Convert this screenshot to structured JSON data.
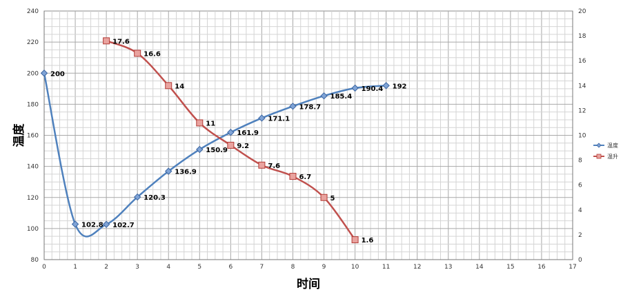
{
  "chart_data": {
    "type": "line",
    "xlabel": "时间",
    "ylabel": "温度",
    "xlim": [
      0,
      17
    ],
    "x_ticks": [
      "0",
      "1",
      "2",
      "3",
      "4",
      "5",
      "6",
      "7",
      "8",
      "9",
      "10",
      "11",
      "12",
      "13",
      "14",
      "15",
      "16",
      "17"
    ],
    "ylim_left": [
      80,
      240
    ],
    "left_ticks": [
      "80",
      "100",
      "120",
      "140",
      "160",
      "180",
      "200",
      "220",
      "240"
    ],
    "ylim_right": [
      0,
      20
    ],
    "right_ticks": [
      "0",
      "2",
      "4",
      "6",
      "8",
      "10",
      "12",
      "14",
      "16",
      "18",
      "20"
    ],
    "grid": true,
    "legend_position": "right",
    "series": [
      {
        "name": "温度",
        "axis": "left",
        "marker": "diamond",
        "color": "#4F81BD",
        "x": [
          0,
          1,
          2,
          3,
          4,
          5,
          6,
          7,
          8,
          9,
          10,
          11
        ],
        "y": [
          200,
          102.8,
          102.7,
          120.3,
          136.9,
          150.9,
          161.9,
          171.1,
          178.7,
          185.4,
          190.4,
          192
        ],
        "labels": [
          "200",
          "102.8",
          "102.7",
          "120.3",
          "136.9",
          "150.9",
          "161.9",
          "171.1",
          "178.7",
          "185.4",
          "190.4",
          "192"
        ]
      },
      {
        "name": "温升",
        "axis": "right",
        "marker": "square",
        "color": "#C0504D",
        "x": [
          2,
          3,
          4,
          5,
          6,
          7,
          8,
          9,
          10
        ],
        "y": [
          17.6,
          16.6,
          14,
          11,
          9.2,
          7.6,
          6.7,
          5,
          1.6
        ],
        "labels": [
          "17.6",
          "16.6",
          "14",
          "11",
          "9.2",
          "7.6",
          "6.7",
          "5",
          "1.6"
        ]
      }
    ]
  }
}
